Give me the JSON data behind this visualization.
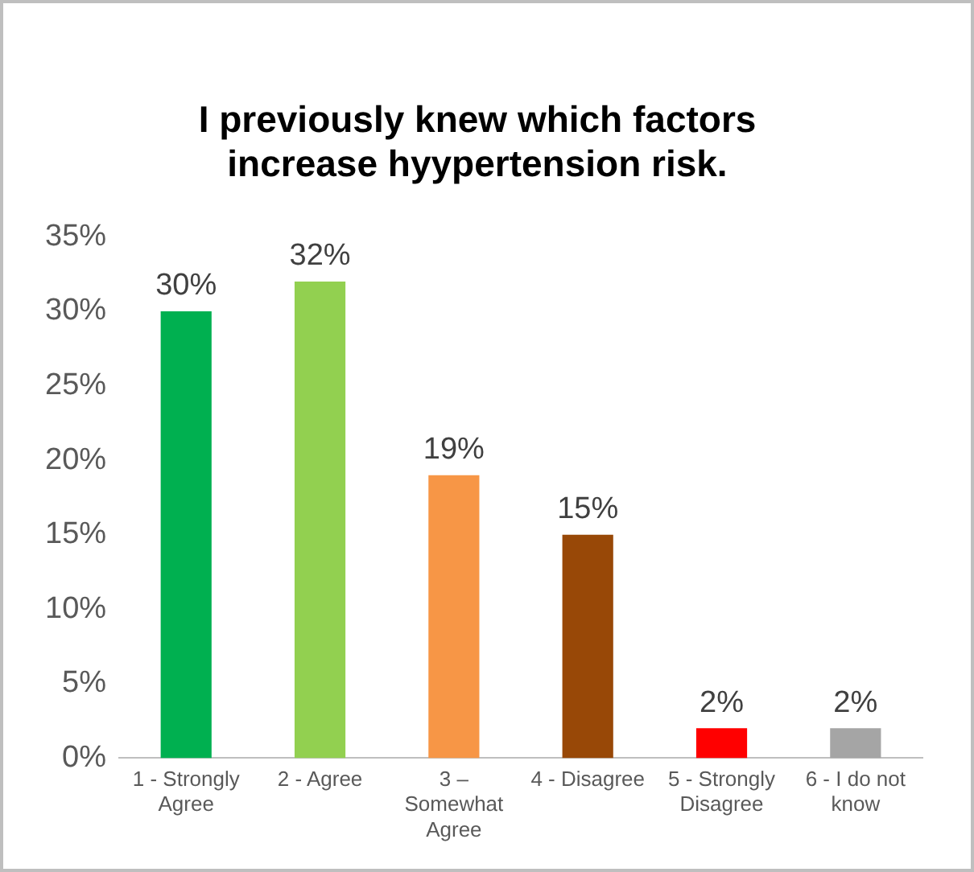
{
  "chart_data": {
    "type": "bar",
    "title": "I previously knew which factors\nincrease hyypertension risk.",
    "categories": [
      "1 - Strongly Agree",
      "2 - Agree",
      "3 – Somewhat Agree",
      "4 - Disagree",
      "5 - Strongly Disagree",
      "6 - I do not know"
    ],
    "values": [
      30,
      32,
      19,
      15,
      2,
      2
    ],
    "colors": [
      "#00b050",
      "#92d050",
      "#f79646",
      "#984807",
      "#ff0000",
      "#a5a5a5"
    ],
    "value_labels": [
      "30%",
      "32%",
      "19%",
      "15%",
      "2%",
      "2%"
    ],
    "ylim": [
      0,
      35
    ],
    "yticks": [
      {
        "value": 0,
        "label": "0%"
      },
      {
        "value": 5,
        "label": "5%"
      },
      {
        "value": 10,
        "label": "10%"
      },
      {
        "value": 15,
        "label": "15%"
      },
      {
        "value": 20,
        "label": "20%"
      },
      {
        "value": 25,
        "label": "25%"
      },
      {
        "value": 30,
        "label": "30%"
      },
      {
        "value": 35,
        "label": "35%"
      }
    ],
    "grid": false,
    "legend": false
  }
}
